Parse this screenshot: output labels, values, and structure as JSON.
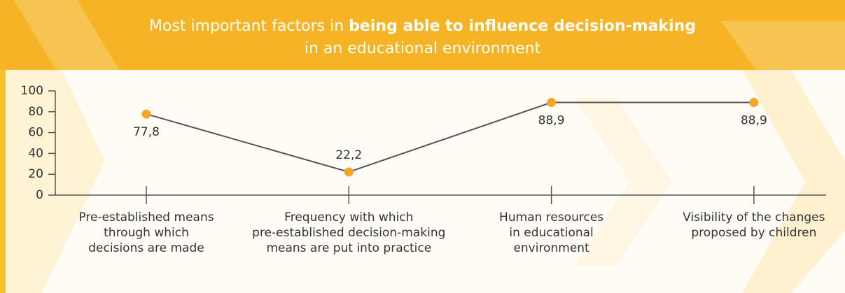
{
  "chart_data": {
    "type": "line",
    "title": [
      {
        "text": "Most important factors in",
        "bold": false
      },
      {
        "text": "being able to influence decision-making",
        "bold": true
      },
      {
        "text": "in an educational environment",
        "bold": false
      }
    ],
    "categories": [
      "Pre-established means\nthrough which\ndecisions are made",
      "Frequency with which\npre-established decision-making\nmeans are put into practice",
      "Human resources\nin educational\nenvironment",
      "Visibility of the changes\nproposed by children"
    ],
    "values": [
      77.8,
      22.2,
      88.9,
      88.9
    ],
    "value_labels": [
      "77,8",
      "22,2",
      "88,9",
      "88,9"
    ],
    "label_position": [
      "below",
      "above",
      "below",
      "below"
    ],
    "line_color": "#555555",
    "marker_color": "#f5a623",
    "ylim": [
      0,
      100
    ],
    "yticks": [
      0,
      20,
      40,
      60,
      80,
      100
    ]
  }
}
